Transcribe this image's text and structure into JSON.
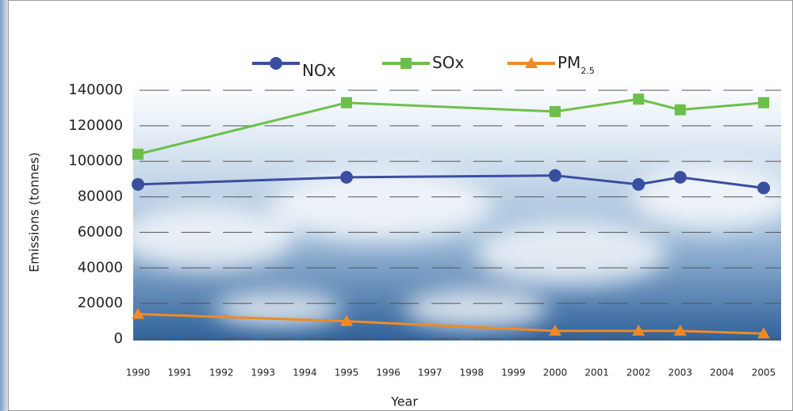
{
  "chart_data": {
    "type": "line",
    "x_label": "Year",
    "y_label": "Emissions (tonnes)",
    "x": [
      1990,
      1995,
      2000,
      2002,
      2003,
      2005
    ],
    "xlim": [
      1990,
      2005
    ],
    "xticks": [
      1990,
      1991,
      1992,
      1993,
      1994,
      1995,
      1996,
      1997,
      1998,
      1999,
      2000,
      2001,
      2002,
      2003,
      2004,
      2005
    ],
    "ylim": [
      0,
      140000
    ],
    "yticks": [
      0,
      20000,
      40000,
      60000,
      80000,
      100000,
      120000,
      140000
    ],
    "grid": true,
    "legend": "top",
    "series": [
      {
        "name": "NOx",
        "color": "#3a4ea0",
        "marker": "circle",
        "values": [
          87000,
          91000,
          92000,
          87000,
          91000,
          85000
        ]
      },
      {
        "name": "SOx",
        "color": "#6cc04a",
        "marker": "square",
        "values": [
          104000,
          133000,
          128000,
          135000,
          129000,
          133000
        ]
      },
      {
        "name": "PM2.5",
        "color": "#f08a24",
        "marker": "triangle",
        "values": [
          14000,
          10000,
          4500,
          4500,
          4500,
          3000
        ]
      }
    ]
  }
}
